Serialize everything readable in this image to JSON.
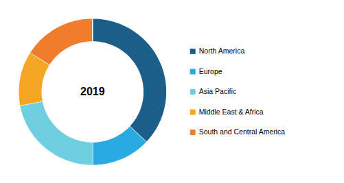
{
  "chart_data": {
    "type": "pie",
    "title": "2019",
    "categories": [
      "North America",
      "Europe",
      "Asia Pacific",
      "Middle East & Africa",
      "South and Central America"
    ],
    "values": [
      37,
      13,
      22,
      12,
      16
    ],
    "colors": [
      "#1b5e8a",
      "#29abe2",
      "#6dcfdf",
      "#f5a623",
      "#f07d2a"
    ],
    "legend": "right",
    "tick_labels": false
  }
}
